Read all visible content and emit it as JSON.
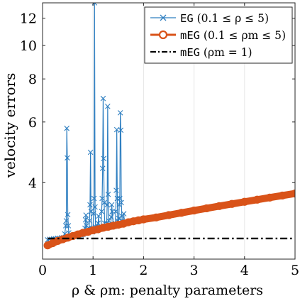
{
  "chart_data": {
    "type": "line",
    "xlabel": "ρ & ρm: penalty parameters",
    "ylabel": "velocity errors",
    "xlim": [
      0,
      5
    ],
    "ylim": [
      2.4,
      13.3
    ],
    "yscale": "log",
    "x_ticks": [
      0,
      1,
      2,
      3,
      4,
      5
    ],
    "x_tick_labels": [
      "0",
      "1",
      "2",
      "3",
      "4",
      "5"
    ],
    "y_ticks": [
      4,
      6,
      8,
      10,
      12
    ],
    "y_tick_labels": [
      "4",
      "6",
      "8",
      "10",
      "12"
    ],
    "grid": true,
    "legend_position": "top-right",
    "series": [
      {
        "name": "EG (0.1 ≤ ρ ≤ 5)",
        "legend_code": "EG",
        "legend_math": "(0.1 ≤ ρ ≤ 5)",
        "color": "#2f7fc1",
        "style": "line-cross",
        "points": [
          [
            0.1,
            2.73
          ],
          [
            0.14,
            2.74
          ],
          [
            0.18,
            2.74
          ],
          [
            0.22,
            2.75
          ],
          [
            0.26,
            2.75
          ],
          [
            0.3,
            2.76
          ],
          [
            0.34,
            2.76
          ],
          [
            0.38,
            2.77
          ],
          [
            0.42,
            2.77
          ],
          [
            0.44,
            2.84
          ],
          [
            0.46,
            3.0
          ],
          [
            0.47,
            3.1
          ],
          [
            0.48,
            5.75
          ],
          [
            0.49,
            4.72
          ],
          [
            0.5,
            3.23
          ],
          [
            0.51,
            3.0
          ],
          [
            0.52,
            2.86
          ],
          [
            0.54,
            2.79
          ],
          [
            0.56,
            2.78
          ],
          [
            0.6,
            2.79
          ],
          [
            0.64,
            2.8
          ],
          [
            0.68,
            2.81
          ],
          [
            0.72,
            2.81
          ],
          [
            0.76,
            2.82
          ],
          [
            0.8,
            2.83
          ],
          [
            0.82,
            2.86
          ],
          [
            0.84,
            2.95
          ],
          [
            0.85,
            3.12
          ],
          [
            0.86,
            3.22
          ],
          [
            0.87,
            3.0
          ],
          [
            0.88,
            2.92
          ],
          [
            0.9,
            2.86
          ],
          [
            0.92,
            2.95
          ],
          [
            0.93,
            3.1
          ],
          [
            0.94,
            3.45
          ],
          [
            0.95,
            4.9
          ],
          [
            0.96,
            3.3
          ],
          [
            0.97,
            2.95
          ],
          [
            0.99,
            2.88
          ],
          [
            1.0,
            2.95
          ],
          [
            1.01,
            3.25
          ],
          [
            1.02,
            3.6
          ],
          [
            1.03,
            13.3
          ],
          [
            1.04,
            3.4
          ],
          [
            1.05,
            2.98
          ],
          [
            1.07,
            2.9
          ],
          [
            1.09,
            2.92
          ],
          [
            1.1,
            3.05
          ],
          [
            1.11,
            3.2
          ],
          [
            1.12,
            2.96
          ],
          [
            1.14,
            2.93
          ],
          [
            1.16,
            2.98
          ],
          [
            1.17,
            3.3
          ],
          [
            1.18,
            3.6
          ],
          [
            1.19,
            4.4
          ],
          [
            1.2,
            7.02
          ],
          [
            1.21,
            4.7
          ],
          [
            1.22,
            3.5
          ],
          [
            1.23,
            3.05
          ],
          [
            1.25,
            2.95
          ],
          [
            1.27,
            3.05
          ],
          [
            1.28,
            3.45
          ],
          [
            1.29,
            6.66
          ],
          [
            1.3,
            3.7
          ],
          [
            1.31,
            3.1
          ],
          [
            1.33,
            2.97
          ],
          [
            1.35,
            3.0
          ],
          [
            1.36,
            3.18
          ],
          [
            1.37,
            3.45
          ],
          [
            1.38,
            3.3
          ],
          [
            1.4,
            3.0
          ],
          [
            1.42,
            2.99
          ],
          [
            1.44,
            3.05
          ],
          [
            1.45,
            3.3
          ],
          [
            1.46,
            3.8
          ],
          [
            1.47,
            5.7
          ],
          [
            1.48,
            3.6
          ],
          [
            1.49,
            3.1
          ],
          [
            1.5,
            3.02
          ],
          [
            1.51,
            3.15
          ],
          [
            1.52,
            3.45
          ],
          [
            1.53,
            3.6
          ],
          [
            1.54,
            6.38
          ],
          [
            1.55,
            5.68
          ],
          [
            1.56,
            3.5
          ],
          [
            1.57,
            3.2
          ],
          [
            1.58,
            3.1
          ],
          [
            1.59,
            3.05
          ],
          [
            1.6,
            3.03
          ],
          [
            1.61,
            3.25
          ],
          [
            1.62,
            3.05
          ],
          [
            1.7,
            3.07
          ],
          [
            1.8,
            3.1
          ],
          [
            1.9,
            3.12
          ],
          [
            2.0,
            3.15
          ]
        ]
      },
      {
        "name": "mEG (0.1 ≤ ρm ≤ 5)",
        "legend_code": "mEG",
        "legend_math": "(0.1 ≤ ρm ≤ 5)",
        "color": "#d95319",
        "style": "line-circle",
        "points": [
          [
            0.1,
            2.63
          ],
          [
            0.2,
            2.67
          ],
          [
            0.3,
            2.71
          ],
          [
            0.4,
            2.74
          ],
          [
            0.5,
            2.77
          ],
          [
            0.6,
            2.8
          ],
          [
            0.7,
            2.83
          ],
          [
            0.8,
            2.86
          ],
          [
            0.9,
            2.88
          ],
          [
            1.0,
            2.91
          ],
          [
            1.1,
            2.93
          ],
          [
            1.2,
            2.96
          ],
          [
            1.3,
            2.98
          ],
          [
            1.4,
            3.0
          ],
          [
            1.5,
            3.02
          ],
          [
            1.6,
            3.04
          ],
          [
            1.7,
            3.07
          ],
          [
            1.8,
            3.09
          ],
          [
            1.9,
            3.11
          ],
          [
            2.0,
            3.13
          ],
          [
            2.25,
            3.17
          ],
          [
            2.5,
            3.22
          ],
          [
            2.75,
            3.27
          ],
          [
            3.0,
            3.32
          ],
          [
            3.25,
            3.37
          ],
          [
            3.5,
            3.42
          ],
          [
            3.75,
            3.47
          ],
          [
            4.0,
            3.52
          ],
          [
            4.25,
            3.57
          ],
          [
            4.5,
            3.62
          ],
          [
            4.75,
            3.67
          ],
          [
            5.0,
            3.72
          ]
        ]
      },
      {
        "name": "mEG (ρm = 1)",
        "legend_code": "mEG",
        "legend_math": "(ρm = 1)",
        "color": "#000000",
        "style": "dash-dot",
        "points": [
          [
            0.1,
            2.755
          ],
          [
            5.0,
            2.755
          ]
        ]
      }
    ]
  }
}
